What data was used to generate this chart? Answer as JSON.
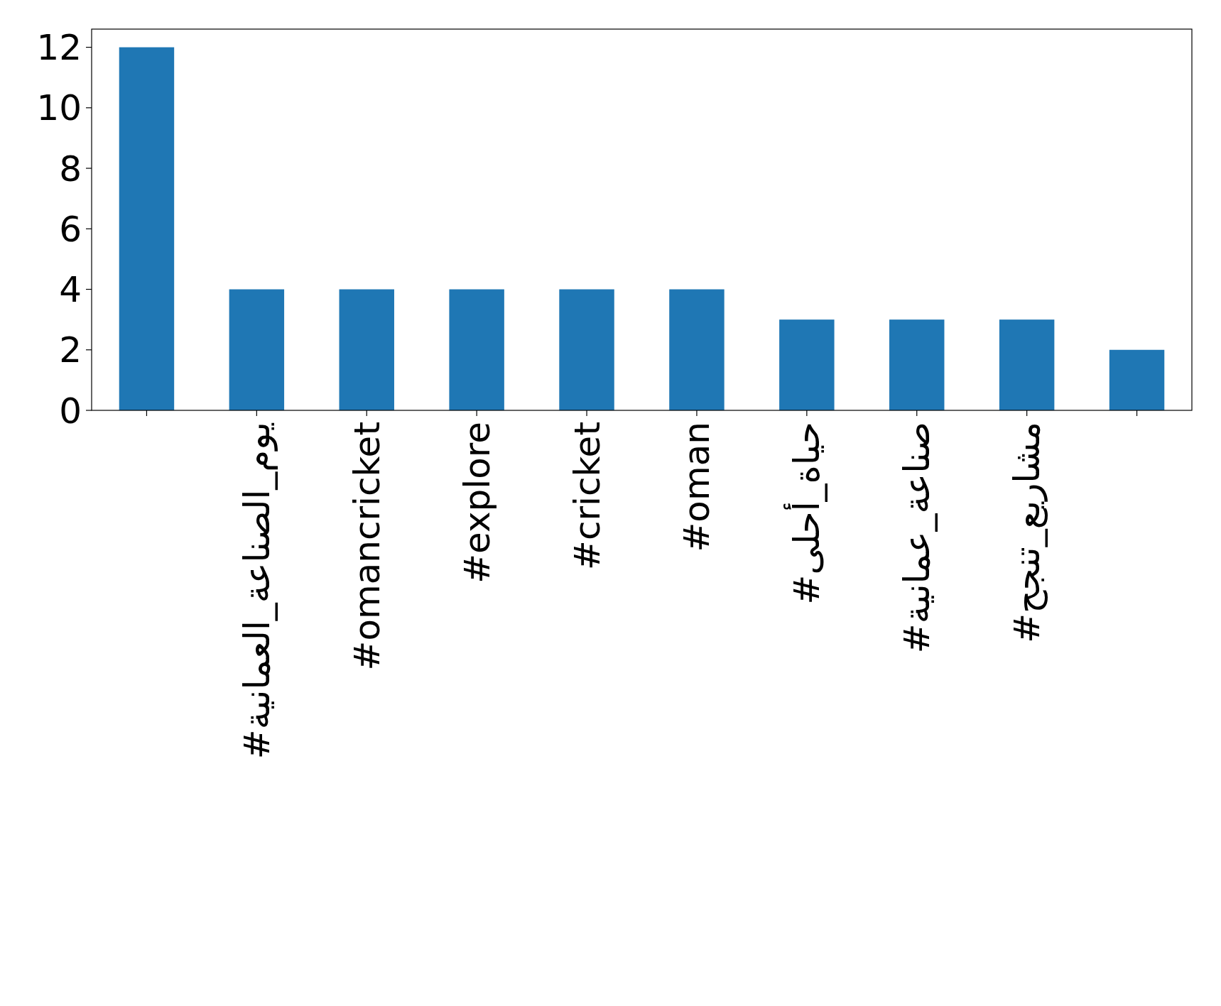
{
  "chart_data": {
    "type": "bar",
    "categories": [
      null,
      "#يوم_الصناعة_العمانية",
      "#omancricket",
      "#explore",
      "#cricket",
      "#oman",
      "#حياة_أحلى",
      "#صناعة_عمانية",
      "#مشاريع_تنجح",
      null
    ],
    "values": [
      12,
      4,
      4,
      4,
      4,
      4,
      3,
      3,
      3,
      2
    ],
    "color": "#1f77b4",
    "ylim": [
      0,
      12.6
    ],
    "yticks": [
      0,
      2,
      4,
      6,
      8,
      10,
      12
    ],
    "grid": false
  }
}
